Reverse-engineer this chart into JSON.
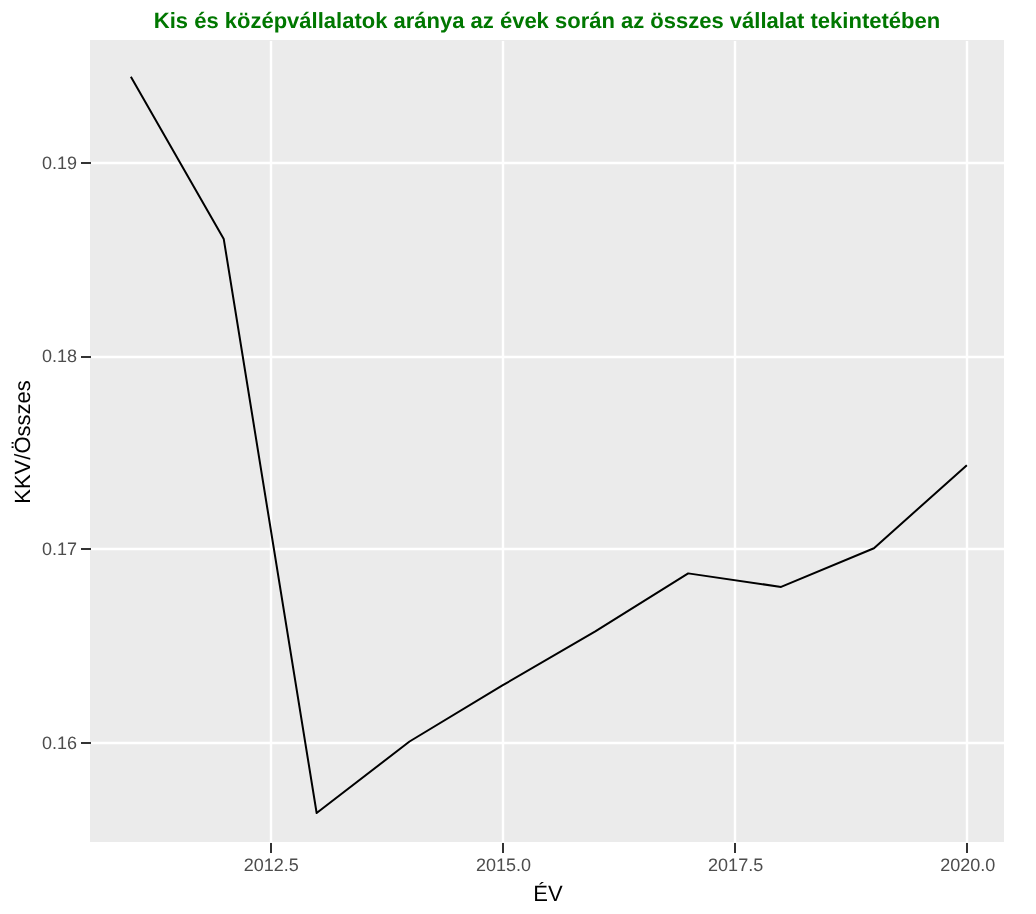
{
  "chart_data": {
    "type": "line",
    "title": "Kis és középvállalatok aránya az évek során az összes vállalat tekintetében",
    "xlabel": "ÉV",
    "ylabel": "KKV/Összes",
    "x": [
      2011,
      2012,
      2013,
      2014,
      2015,
      2016,
      2017,
      2018,
      2019,
      2020
    ],
    "series": [
      {
        "color": "#000000",
        "values": [
          0.1944,
          0.186,
          0.1563,
          0.16,
          0.1629,
          0.1657,
          0.1687,
          0.168,
          0.17,
          0.1743
        ]
      }
    ],
    "xlim": [
      2010.56,
      2020.4
    ],
    "xticks": [
      {
        "value": 2012.5,
        "label": "2012.5"
      },
      {
        "value": 2015,
        "label": "2015.0"
      },
      {
        "value": 2017.5,
        "label": "2017.5"
      },
      {
        "value": 2020,
        "label": "2020.0"
      }
    ],
    "ylim": [
      0.1548,
      0.1963
    ],
    "yticks": [
      0.16,
      0.17,
      0.18,
      0.19
    ],
    "grid": true,
    "marker": "none",
    "line_style": "solid"
  }
}
